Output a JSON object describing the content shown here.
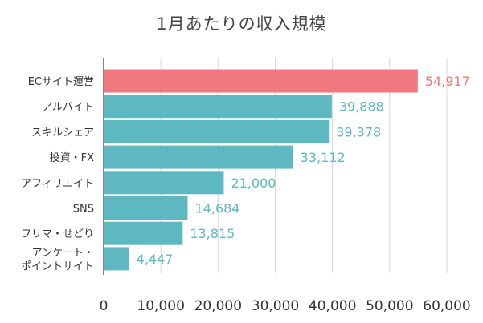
{
  "chart_data": {
    "type": "bar",
    "orientation": "horizontal",
    "title": "1月あたりの収入規模",
    "xlabel": "",
    "ylabel": "",
    "xlim": [
      0,
      60000
    ],
    "x_ticks": [
      0,
      10000,
      20000,
      30000,
      40000,
      50000,
      60000
    ],
    "x_tick_labels": [
      "0",
      "10,000",
      "20,000",
      "30,000",
      "40,000",
      "50,000",
      "60,000"
    ],
    "grid": "vertical",
    "legend": "none",
    "categories": [
      [
        "ECサイト運営"
      ],
      [
        "アルバイト"
      ],
      [
        "スキルシェア"
      ],
      [
        "投資・FX"
      ],
      [
        "アフィリエイト"
      ],
      [
        "SNS"
      ],
      [
        "フリマ・せどり"
      ],
      [
        "アンケート・",
        "ポイントサイト"
      ]
    ],
    "values": [
      54917,
      39888,
      39378,
      33112,
      21000,
      14684,
      13815,
      4447
    ],
    "value_labels": [
      "54,917",
      "39,888",
      "39,378",
      "33,112",
      "21,000",
      "14,684",
      "13,815",
      "4,447"
    ],
    "highlight_index": 0,
    "colors": {
      "bar": "#5db8c2",
      "highlight": "#f27880",
      "grid": "#d9d9d9",
      "axis": "#333333"
    }
  }
}
